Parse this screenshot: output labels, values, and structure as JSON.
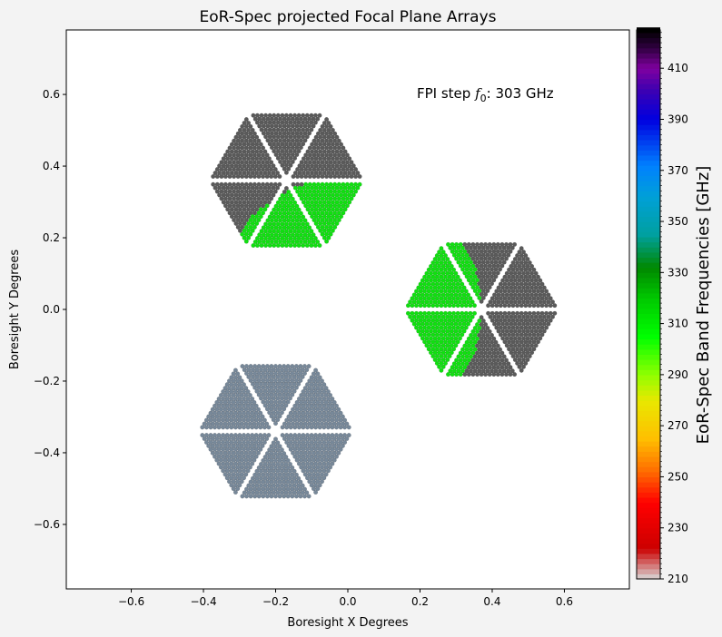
{
  "chart_data": {
    "type": "scatter",
    "title": "EoR-Spec projected Focal Plane Arrays",
    "xlabel": "Boresight X Degrees",
    "ylabel": "Boresight Y Degrees",
    "xlim": [
      -0.78,
      0.78
    ],
    "ylim": [
      -0.78,
      0.78
    ],
    "xticks": [
      -0.6,
      -0.4,
      -0.2,
      0.0,
      0.2,
      0.4,
      0.6
    ],
    "yticks": [
      -0.6,
      -0.4,
      -0.2,
      0.0,
      0.2,
      0.4,
      0.6
    ],
    "tick_labels": {
      "x": [
        "−0.6",
        "−0.4",
        "−0.2",
        "0.0",
        "0.2",
        "0.4",
        "0.6"
      ],
      "y": [
        "−0.6",
        "−0.4",
        "−0.2",
        "0.0",
        "0.2",
        "0.4",
        "0.6"
      ]
    },
    "annotation": {
      "prefix": "FPI step ",
      "symbol": "f",
      "subscript": "0",
      "suffix": ": 303 GHz",
      "x": 0.2,
      "y": 0.59
    },
    "grid": false,
    "fpi_step_ghz": 303,
    "arrays": [
      {
        "group": "upper-left",
        "center": [
          -0.17,
          0.36
        ],
        "detectors": "grey / green (in-band)"
      },
      {
        "group": "right",
        "center": [
          0.37,
          0.0
        ],
        "detectors": "grey / green (in-band)"
      },
      {
        "group": "lower-left",
        "center": [
          -0.2,
          -0.34
        ],
        "detectors": "slate (inactive)"
      }
    ],
    "in_band_disk": {
      "center": [
        0.0,
        0.0
      ],
      "radius": 0.37
    },
    "colors": {
      "detector_default": "#5a5a5a",
      "detector_in_band": "#10e010",
      "detector_inactive": "#778899",
      "axes_background": "#ffffff",
      "figure_background": "#f3f3f3"
    },
    "colorbar": {
      "label": "EoR-Spec Band Frequencies [GHz]",
      "min": 210,
      "max": 425,
      "ticks": [
        210,
        230,
        250,
        270,
        290,
        310,
        330,
        350,
        370,
        390,
        410
      ],
      "tick_labels": [
        "210",
        "230",
        "250",
        "270",
        "290",
        "310",
        "330",
        "350",
        "370",
        "390",
        "410"
      ],
      "colormap_stops": [
        {
          "v": 210,
          "c": "#d8d8d8"
        },
        {
          "v": 222,
          "c": "#cc0000"
        },
        {
          "v": 240,
          "c": "#ff0000"
        },
        {
          "v": 252,
          "c": "#ff6a00"
        },
        {
          "v": 265,
          "c": "#ffbf00"
        },
        {
          "v": 280,
          "c": "#e8e800"
        },
        {
          "v": 290,
          "c": "#90ff00"
        },
        {
          "v": 305,
          "c": "#00ff00"
        },
        {
          "v": 320,
          "c": "#00c800"
        },
        {
          "v": 332,
          "c": "#008800"
        },
        {
          "v": 345,
          "c": "#00a0a0"
        },
        {
          "v": 360,
          "c": "#00a0d8"
        },
        {
          "v": 372,
          "c": "#0080ff"
        },
        {
          "v": 390,
          "c": "#0000e0"
        },
        {
          "v": 402,
          "c": "#4000b0"
        },
        {
          "v": 410,
          "c": "#8000a0"
        },
        {
          "v": 418,
          "c": "#300040"
        },
        {
          "v": 425,
          "c": "#000000"
        }
      ]
    }
  }
}
